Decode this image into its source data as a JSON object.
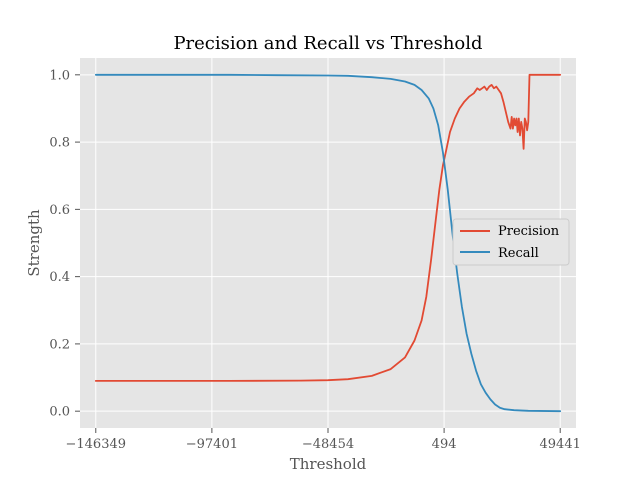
{
  "chart_data": {
    "type": "line",
    "title": "Precision and Recall vs Threshold",
    "xlabel": "Threshold",
    "ylabel": "Strength",
    "xlim": [
      -153000,
      56100
    ],
    "ylim": [
      -0.05,
      1.05
    ],
    "x_ticks": [
      -146349,
      -97401,
      -48454,
      494,
      49441
    ],
    "x_tick_labels": [
      "−146349",
      "−97401",
      "−48454",
      "494",
      "49441"
    ],
    "y_ticks": [
      0.0,
      0.2,
      0.4,
      0.6,
      0.8,
      1.0
    ],
    "y_tick_labels": [
      "0.0",
      "0.2",
      "0.4",
      "0.6",
      "0.8",
      "1.0"
    ],
    "grid": true,
    "legend": "center-right",
    "series": [
      {
        "name": "Precision",
        "color": "#E24A33",
        "points": [
          [
            -146349,
            0.09
          ],
          [
            -120000,
            0.09
          ],
          [
            -90000,
            0.09
          ],
          [
            -60000,
            0.091
          ],
          [
            -48454,
            0.092
          ],
          [
            -40000,
            0.095
          ],
          [
            -30000,
            0.105
          ],
          [
            -22000,
            0.125
          ],
          [
            -16000,
            0.16
          ],
          [
            -12000,
            0.21
          ],
          [
            -9000,
            0.27
          ],
          [
            -7000,
            0.34
          ],
          [
            -5000,
            0.45
          ],
          [
            -3000,
            0.57
          ],
          [
            -1500,
            0.66
          ],
          [
            0,
            0.73
          ],
          [
            1500,
            0.78
          ],
          [
            3000,
            0.83
          ],
          [
            5000,
            0.87
          ],
          [
            7000,
            0.9
          ],
          [
            9000,
            0.92
          ],
          [
            11000,
            0.935
          ],
          [
            13000,
            0.945
          ],
          [
            14500,
            0.96
          ],
          [
            15500,
            0.955
          ],
          [
            16500,
            0.96
          ],
          [
            17500,
            0.965
          ],
          [
            18500,
            0.955
          ],
          [
            19500,
            0.965
          ],
          [
            20500,
            0.97
          ],
          [
            21500,
            0.96
          ],
          [
            22500,
            0.965
          ],
          [
            23500,
            0.955
          ],
          [
            24500,
            0.945
          ],
          [
            25500,
            0.92
          ],
          [
            26500,
            0.89
          ],
          [
            27500,
            0.86
          ],
          [
            28500,
            0.84
          ],
          [
            29000,
            0.875
          ],
          [
            29500,
            0.84
          ],
          [
            30000,
            0.87
          ],
          [
            30500,
            0.85
          ],
          [
            31000,
            0.87
          ],
          [
            31500,
            0.83
          ],
          [
            32000,
            0.87
          ],
          [
            32500,
            0.82
          ],
          [
            33000,
            0.86
          ],
          [
            33500,
            0.84
          ],
          [
            34000,
            0.78
          ],
          [
            34500,
            0.87
          ],
          [
            35000,
            0.86
          ],
          [
            35500,
            0.835
          ],
          [
            36000,
            0.86
          ],
          [
            36500,
            1.0
          ],
          [
            49441,
            1.0
          ]
        ]
      },
      {
        "name": "Recall",
        "color": "#348ABD",
        "points": [
          [
            -146349,
            1.0
          ],
          [
            -120000,
            1.0
          ],
          [
            -90000,
            1.0
          ],
          [
            -70000,
            0.999
          ],
          [
            -48454,
            0.998
          ],
          [
            -40000,
            0.997
          ],
          [
            -30000,
            0.993
          ],
          [
            -22000,
            0.988
          ],
          [
            -16000,
            0.98
          ],
          [
            -12000,
            0.97
          ],
          [
            -9000,
            0.955
          ],
          [
            -6000,
            0.93
          ],
          [
            -4000,
            0.9
          ],
          [
            -2000,
            0.85
          ],
          [
            0,
            0.77
          ],
          [
            2000,
            0.66
          ],
          [
            4000,
            0.53
          ],
          [
            6000,
            0.41
          ],
          [
            8000,
            0.31
          ],
          [
            10000,
            0.23
          ],
          [
            12000,
            0.17
          ],
          [
            14000,
            0.12
          ],
          [
            16000,
            0.08
          ],
          [
            18000,
            0.055
          ],
          [
            20000,
            0.035
          ],
          [
            22000,
            0.02
          ],
          [
            24000,
            0.01
          ],
          [
            26000,
            0.006
          ],
          [
            30000,
            0.003
          ],
          [
            36000,
            0.001
          ],
          [
            49441,
            0.0
          ]
        ]
      }
    ]
  }
}
